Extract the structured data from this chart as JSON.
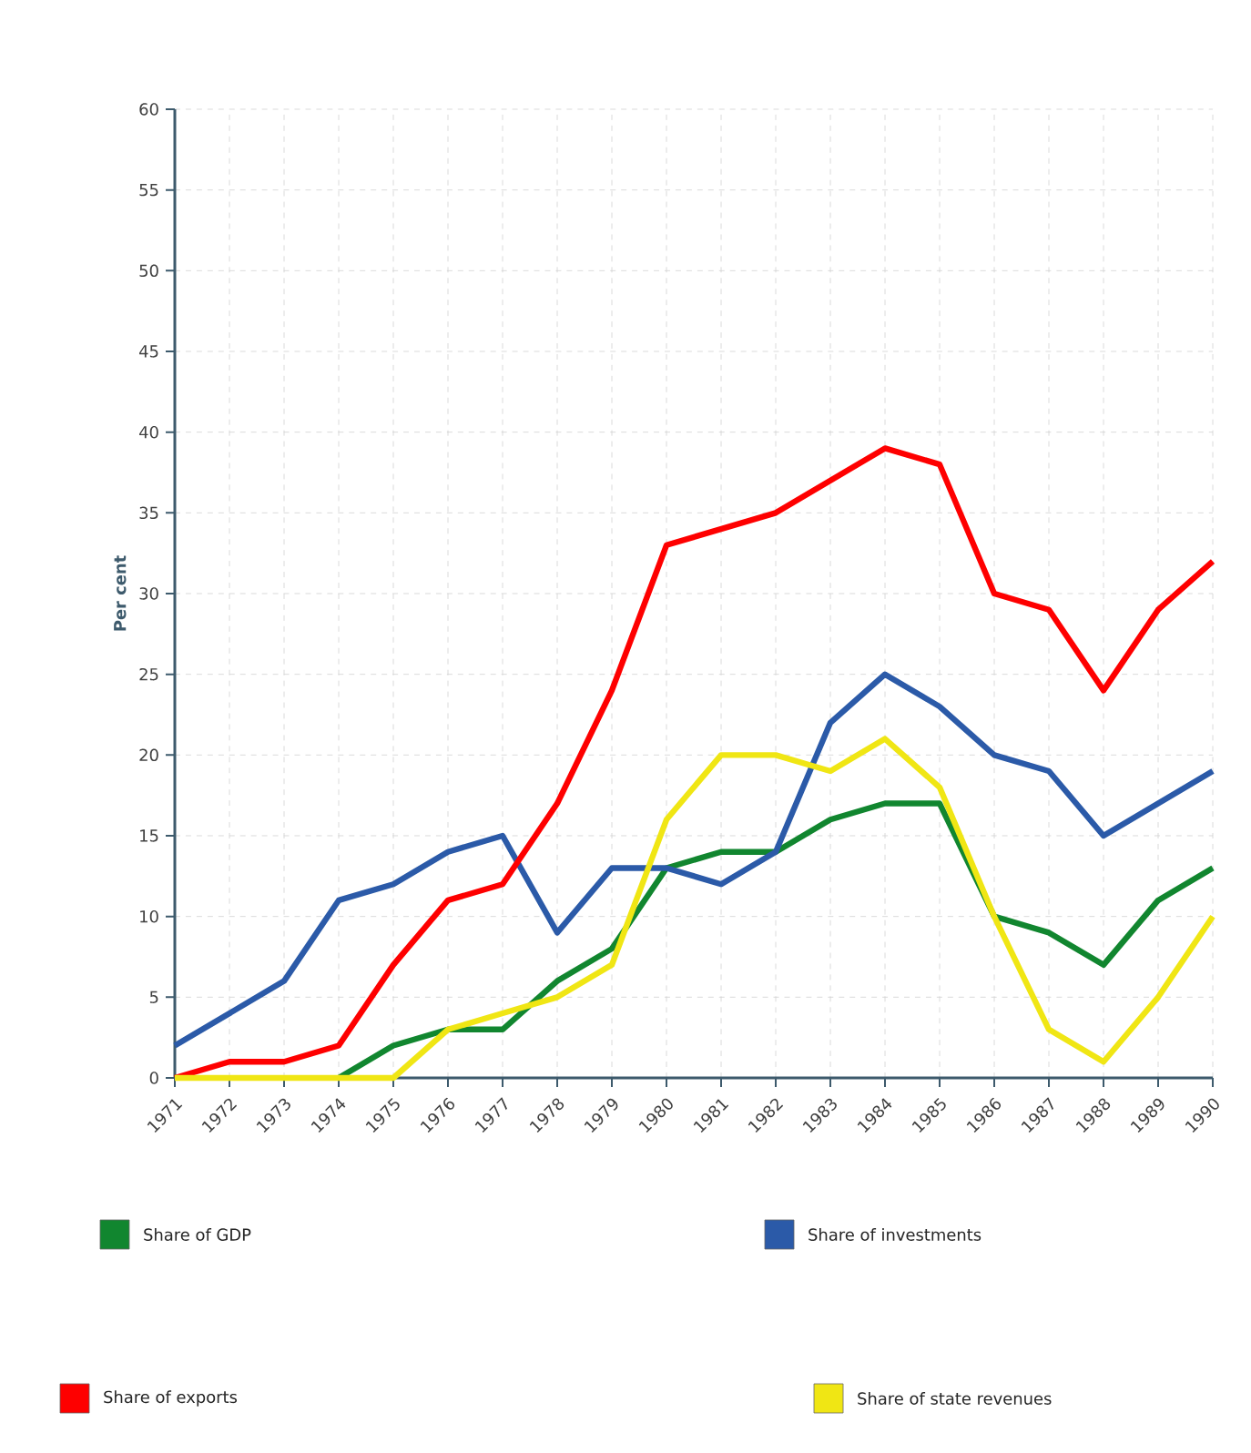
{
  "chart_data": {
    "type": "line",
    "ylabel": "Per cent",
    "categories": [
      "1971",
      "1972",
      "1973",
      "1974",
      "1975",
      "1976",
      "1977",
      "1978",
      "1979",
      "1980",
      "1981",
      "1982",
      "1983",
      "1984",
      "1985",
      "1986",
      "1987",
      "1988",
      "1989",
      "1990"
    ],
    "series": [
      {
        "name": "Share of GDP",
        "color": "#11862f",
        "values": [
          null,
          null,
          null,
          0,
          2,
          3,
          3,
          6,
          8,
          13,
          14,
          14,
          16,
          17,
          17,
          10,
          9,
          7,
          11,
          13
        ]
      },
      {
        "name": "Share of investments",
        "color": "#2b5aa8",
        "values": [
          2,
          4,
          6,
          11,
          12,
          14,
          15,
          9,
          13,
          13,
          12,
          14,
          22,
          25,
          23,
          20,
          19,
          15,
          17,
          19
        ]
      },
      {
        "name": "Share of exports",
        "color": "#fe0000",
        "values": [
          0,
          1,
          1,
          2,
          7,
          11,
          12,
          17,
          24,
          33,
          34,
          35,
          37,
          39,
          38,
          30,
          29,
          24,
          29,
          32
        ]
      },
      {
        "name": "Share of state revenues",
        "color": "#f0e614",
        "values": [
          0,
          0,
          0,
          0,
          0,
          3,
          4,
          5,
          7,
          16,
          20,
          20,
          19,
          21,
          18,
          10,
          3,
          1,
          5,
          10
        ]
      }
    ],
    "ylim": [
      0,
      60
    ],
    "yticks": [
      0,
      5,
      10,
      15,
      20,
      25,
      30,
      35,
      40,
      45,
      50,
      55,
      60
    ],
    "grid": true,
    "legend": "bottom",
    "marker": "none",
    "line_style": "solid"
  }
}
